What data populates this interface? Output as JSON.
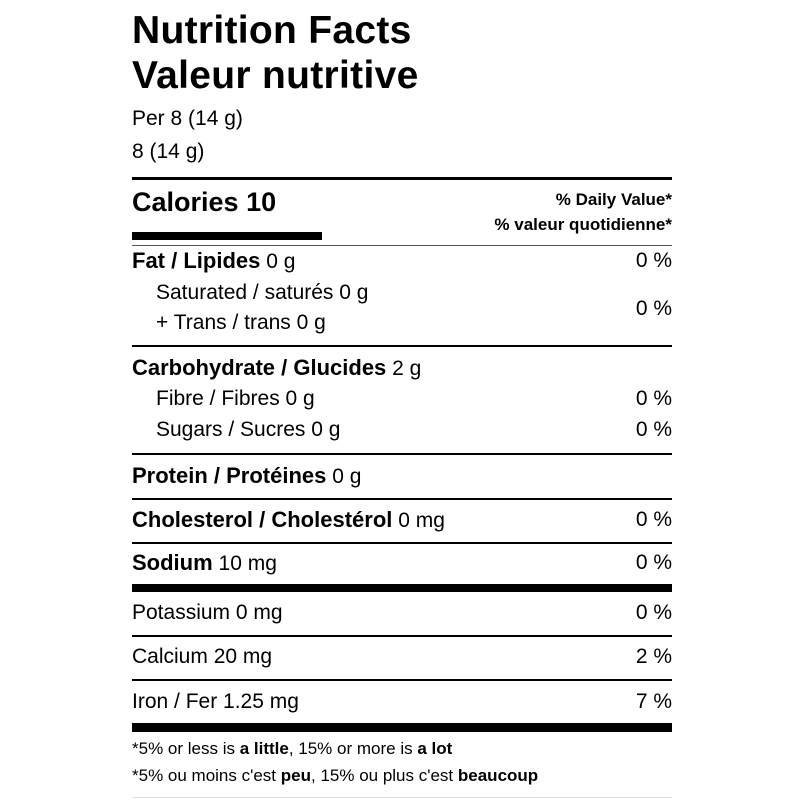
{
  "header": {
    "title_en": "Nutrition Facts",
    "title_fr": "Valeur nutritive",
    "serving_en": "Per 8 (14 g)",
    "serving_fr": "8 (14 g)"
  },
  "calories": {
    "label": "Calories",
    "value": "10"
  },
  "daily_value": {
    "en": "% Daily Value*",
    "fr": "% valeur quotidienne*"
  },
  "nutrients": {
    "fat": {
      "label": "Fat / Lipides",
      "amount": "0 g",
      "dv": "0 %"
    },
    "saturated": {
      "label": "Saturated / saturés",
      "amount": "0 g"
    },
    "trans": {
      "label": "+ Trans / trans",
      "amount": "0 g"
    },
    "sat_trans_dv": "0 %",
    "carbohydrate": {
      "label": "Carbohydrate / Glucides",
      "amount": "2 g"
    },
    "fibre": {
      "label": "Fibre / Fibres",
      "amount": "0 g",
      "dv": "0 %"
    },
    "sugars": {
      "label": "Sugars / Sucres",
      "amount": "0 g",
      "dv": "0 %"
    },
    "protein": {
      "label": "Protein / Protéines",
      "amount": "0 g"
    },
    "cholesterol": {
      "label": "Cholesterol / Cholestérol",
      "amount": "0 mg",
      "dv": "0 %"
    },
    "sodium": {
      "label": "Sodium",
      "amount": "10 mg",
      "dv": "0 %"
    },
    "potassium": {
      "label": "Potassium",
      "amount": "0 mg",
      "dv": "0 %"
    },
    "calcium": {
      "label": "Calcium",
      "amount": "20 mg",
      "dv": "2 %"
    },
    "iron": {
      "label": "Iron / Fer",
      "amount": "1.25 mg",
      "dv": "7 %"
    }
  },
  "footnote": {
    "en": {
      "a": "*5% or less is ",
      "b": "a little",
      "c": ", 15% or more is ",
      "d": "a lot"
    },
    "fr": {
      "a": "*5% ou moins c'est ",
      "b": "peu",
      "c": ", 15% ou plus c'est ",
      "d": "beaucoup"
    }
  }
}
